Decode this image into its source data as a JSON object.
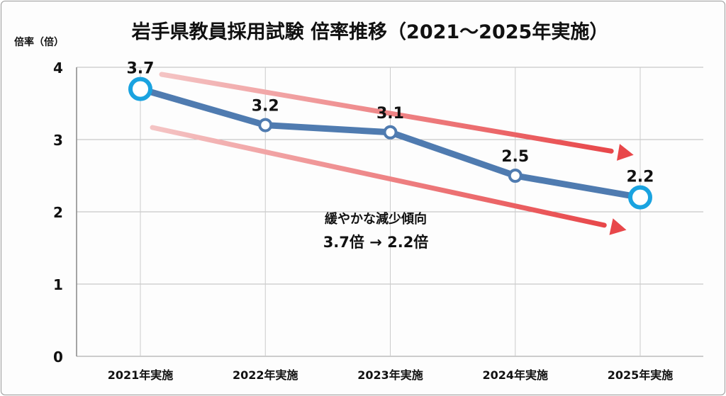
{
  "chart_data": {
    "type": "line",
    "title": "岩手県教員採用試験 倍率推移（2021〜2025年実施）",
    "ylabel": "倍率（倍）",
    "xlabel": "",
    "categories": [
      "2021年実施",
      "2022年実施",
      "2023年実施",
      "2024年実施",
      "2025年実施"
    ],
    "values": [
      3.7,
      3.2,
      3.1,
      2.5,
      2.2
    ],
    "data_labels": [
      "3.7",
      "3.2",
      "3.1",
      "2.5",
      "2.2"
    ],
    "ylim": [
      0,
      4
    ],
    "yticks": [
      "0",
      "1",
      "2",
      "3",
      "4"
    ],
    "grid": true,
    "annotation": {
      "line1": "緩やかな減少傾向",
      "line2": "3.7倍 → 2.2倍"
    },
    "colors": {
      "line": "#4f7bb0",
      "endpoint": "#1aa3e0",
      "trend_arrow": "#e8474a"
    }
  }
}
